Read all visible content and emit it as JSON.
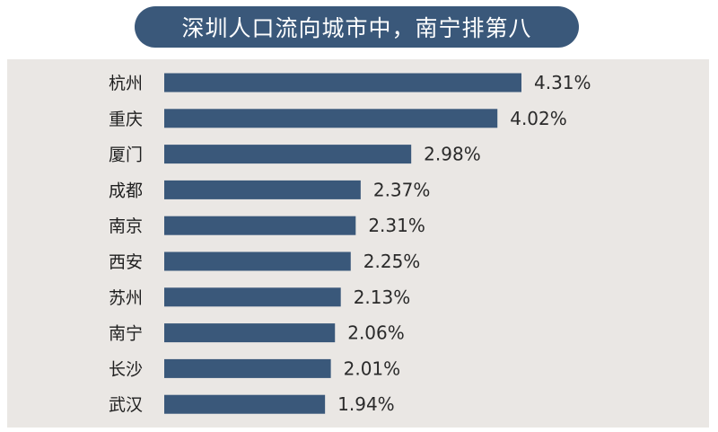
{
  "chart_data": {
    "type": "bar",
    "orientation": "horizontal",
    "title": "深圳人口流向城市中，南宁排第八",
    "categories": [
      "杭州",
      "重庆",
      "厦门",
      "成都",
      "南京",
      "西安",
      "苏州",
      "南宁",
      "长沙",
      "武汉"
    ],
    "values": [
      4.31,
      4.02,
      2.98,
      2.37,
      2.31,
      2.25,
      2.13,
      2.06,
      2.01,
      1.94
    ],
    "value_labels": [
      "4.31%",
      "4.02%",
      "2.98%",
      "2.37%",
      "2.31%",
      "2.25%",
      "2.13%",
      "2.06%",
      "2.01%",
      "1.94%"
    ],
    "unit": "%",
    "xlim": [
      0,
      4.31
    ],
    "grid": false,
    "legend": "none",
    "colors": {
      "bar": "#3a587a",
      "title_background": "#3a587a",
      "panel_background": "#eae7e4"
    }
  }
}
